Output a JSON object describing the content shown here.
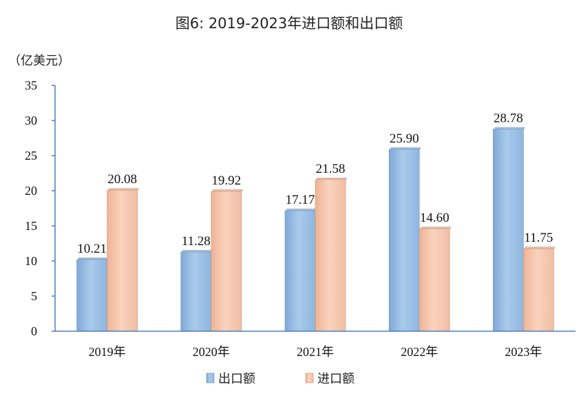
{
  "chart_data": {
    "type": "bar",
    "title": "图6: 2019-2023年进口额和出口额",
    "unit_label": "（亿美元）",
    "categories": [
      "2019年",
      "2020年",
      "2021年",
      "2022年",
      "2023年"
    ],
    "series": [
      {
        "name": "出口额",
        "values": [
          10.21,
          11.28,
          17.17,
          25.9,
          28.78
        ],
        "labels": [
          "10.21",
          "11.28",
          "17.17",
          "25.90",
          "28.78"
        ],
        "color": "#9dc3e6"
      },
      {
        "name": "进口额",
        "values": [
          20.08,
          19.92,
          21.58,
          14.6,
          11.75
        ],
        "labels": [
          "20.08",
          "19.92",
          "21.58",
          "14.60",
          "11.75"
        ],
        "color": "#f8cbad"
      }
    ],
    "ylim": [
      0,
      35
    ],
    "yticks": [
      0,
      5,
      10,
      15,
      20,
      25,
      30,
      35
    ],
    "grid": false,
    "legend": "bottom"
  }
}
